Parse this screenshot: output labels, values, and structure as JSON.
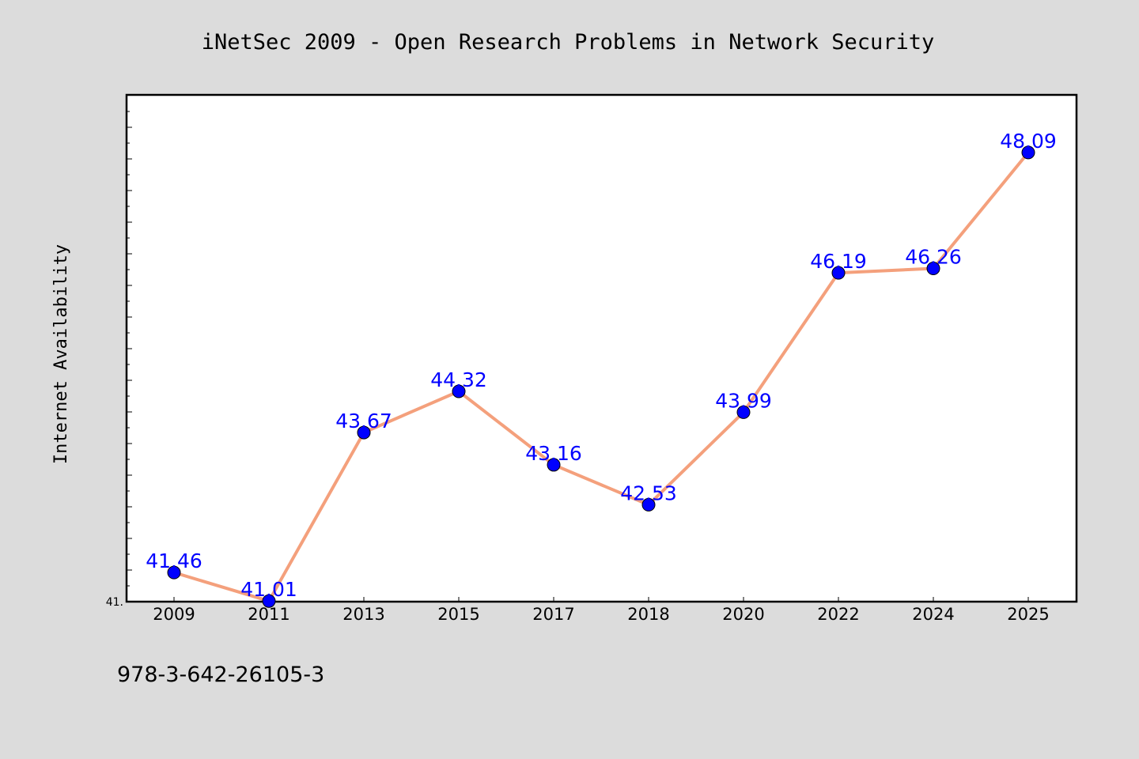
{
  "chart_data": {
    "type": "line",
    "title": "iNetSec 2009 - Open Research Problems in Network Security",
    "xlabel": "",
    "ylabel": "Internet Availability",
    "categories": [
      "2009",
      "2011",
      "2013",
      "2015",
      "2017",
      "2018",
      "2020",
      "2022",
      "2024",
      "2025"
    ],
    "series": [
      {
        "values": [
          41.46,
          41.01,
          43.67,
          44.32,
          43.16,
          42.53,
          43.99,
          46.19,
          46.26,
          48.09
        ]
      }
    ],
    "data_labels": [
      "41.46",
      "41.01",
      "43.67",
      "44.32",
      "43.16",
      "42.53",
      "43.99",
      "46.19",
      "46.26",
      "48.09"
    ],
    "ylim": [
      41.0,
      49.0
    ],
    "y_tick_labels": [
      "41."
    ],
    "grid": false,
    "legend": "none",
    "colors": {
      "line": "#f4a07c",
      "marker": "#0000ff",
      "data_label": "#0000ff",
      "background": "#dcdcdc",
      "plot_background": "#ffffff"
    }
  },
  "footer_text": "978-3-642-26105-3"
}
